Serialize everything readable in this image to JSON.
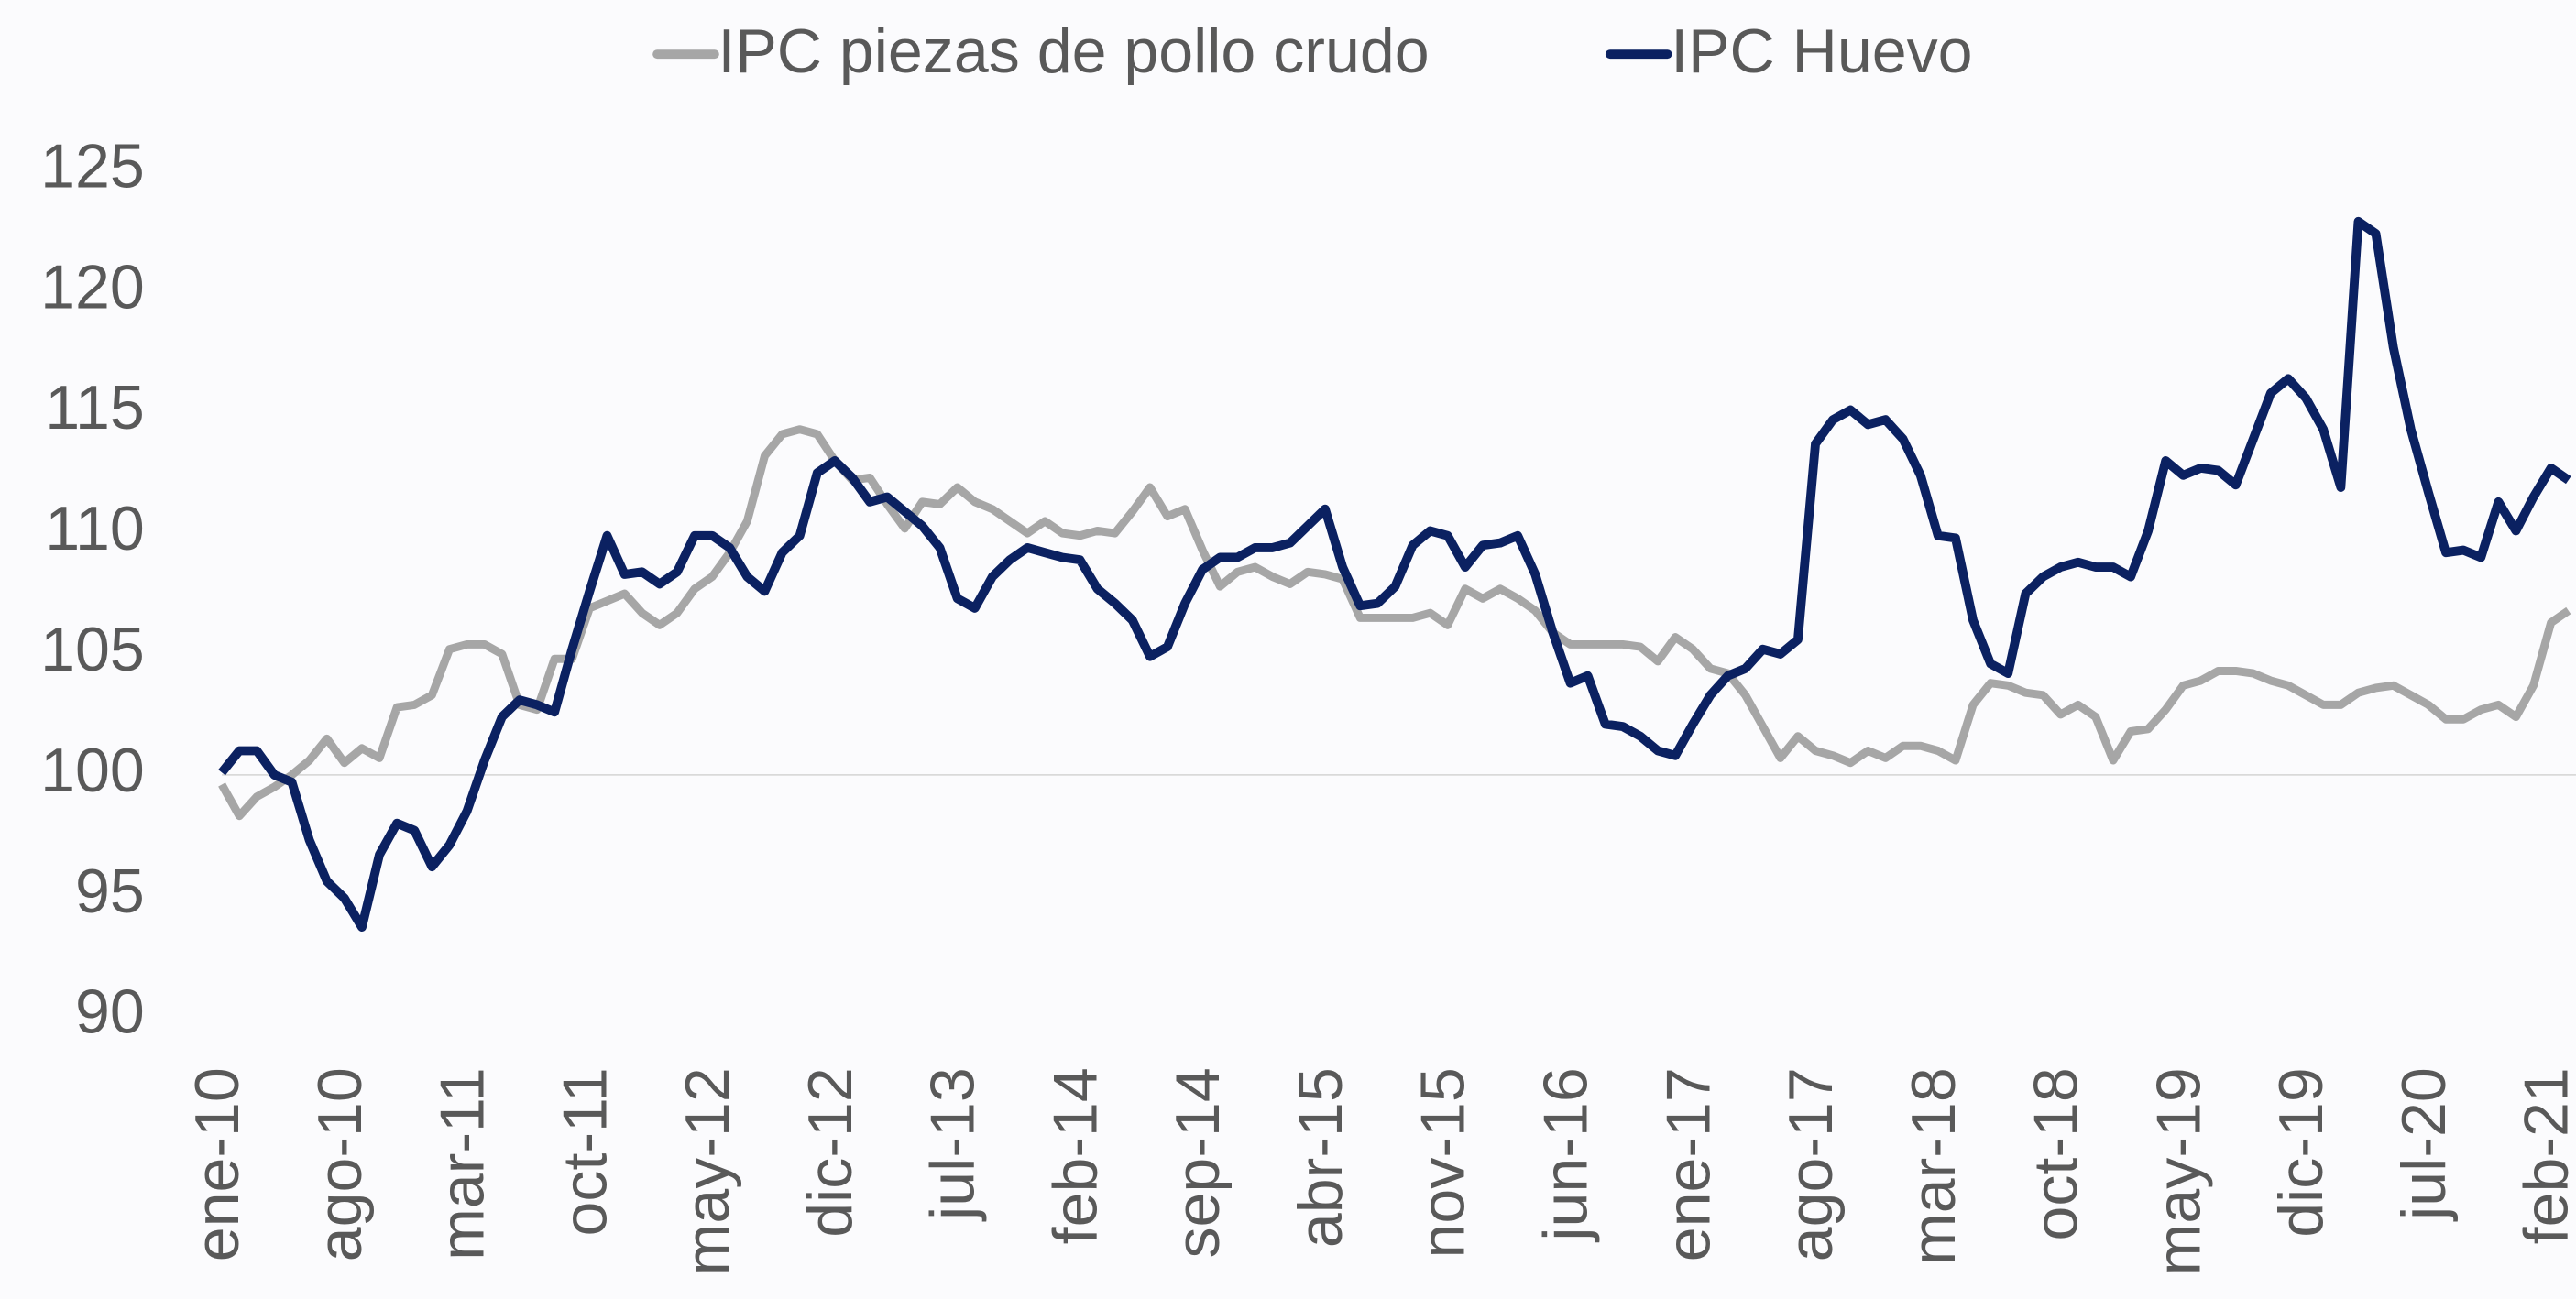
{
  "chart_data": {
    "type": "line",
    "categories": [
      "ene-10",
      null,
      null,
      null,
      null,
      null,
      null,
      "ago-10",
      null,
      null,
      null,
      null,
      null,
      null,
      "mar-11",
      null,
      null,
      null,
      null,
      null,
      null,
      "oct-11",
      null,
      null,
      null,
      null,
      null,
      null,
      "may-12",
      null,
      null,
      null,
      null,
      null,
      null,
      "dic-12",
      null,
      null,
      null,
      null,
      null,
      null,
      "jul-13",
      null,
      null,
      null,
      null,
      null,
      null,
      "feb-14",
      null,
      null,
      null,
      null,
      null,
      null,
      "sep-14",
      null,
      null,
      null,
      null,
      null,
      null,
      "abr-15",
      null,
      null,
      null,
      null,
      null,
      null,
      "nov-15",
      null,
      null,
      null,
      null,
      null,
      null,
      "jun-16",
      null,
      null,
      null,
      null,
      null,
      null,
      "ene-17",
      null,
      null,
      null,
      null,
      null,
      null,
      "ago-17",
      null,
      null,
      null,
      null,
      null,
      null,
      "mar-18",
      null,
      null,
      null,
      null,
      null,
      null,
      "oct-18",
      null,
      null,
      null,
      null,
      null,
      null,
      "may-19",
      null,
      null,
      null,
      null,
      null,
      null,
      "dic-19",
      null,
      null,
      null,
      null,
      null,
      null,
      "jul-20",
      null,
      null,
      null,
      null,
      null,
      null,
      "feb-21",
      null
    ],
    "series": [
      {
        "name": "IPC piezas de pollo crudo",
        "color": "#a6a6a6",
        "values": [
          99.6,
          98.3,
          99.1,
          99.5,
          100,
          100.6,
          101.5,
          100.5,
          101.1,
          100.7,
          102.8,
          102.9,
          103.3,
          105.2,
          105.4,
          105.4,
          105,
          102.9,
          102.7,
          104.8,
          104.8,
          106.9,
          107.2,
          107.5,
          106.7,
          106.2,
          106.7,
          107.7,
          108.2,
          109.2,
          110.5,
          113.2,
          114.1,
          114.3,
          114.1,
          113,
          112.2,
          112.3,
          111.2,
          110.2,
          111.3,
          111.2,
          111.9,
          111.3,
          111,
          110.5,
          110,
          110.5,
          110,
          109.9,
          110.1,
          110,
          110.9,
          111.9,
          110.7,
          111,
          109.3,
          107.8,
          108.4,
          108.6,
          108.2,
          107.9,
          108.4,
          108.3,
          108.1,
          106.5,
          106.5,
          106.5,
          106.5,
          106.7,
          106.2,
          107.7,
          107.3,
          107.7,
          107.3,
          106.8,
          105.9,
          105.4,
          105.4,
          105.4,
          105.4,
          105.3,
          104.7,
          105.7,
          105.2,
          104.4,
          104.2,
          103.3,
          102,
          100.7,
          101.6,
          101,
          100.8,
          100.5,
          101,
          100.7,
          101.2,
          101.2,
          101,
          100.6,
          102.9,
          103.8,
          103.7,
          103.4,
          103.3,
          102.5,
          102.9,
          102.4,
          100.6,
          101.8,
          101.9,
          102.7,
          103.7,
          103.9,
          104.3,
          104.3,
          104.2,
          103.9,
          103.7,
          103.3,
          102.9,
          102.9,
          103.4,
          103.6,
          103.7,
          103.3,
          102.9,
          102.3,
          102.3,
          102.7,
          102.9,
          102.4,
          103.7,
          106.3,
          106.8
        ]
      },
      {
        "name": "IPC Huevo",
        "color": "#0b2161",
        "values": [
          100.1,
          101,
          101,
          100,
          99.7,
          97.3,
          95.6,
          94.9,
          93.7,
          96.7,
          98,
          97.7,
          96.2,
          97.1,
          98.5,
          100.6,
          102.4,
          103.1,
          102.9,
          102.6,
          105.2,
          107.6,
          109.9,
          108.3,
          108.4,
          107.9,
          108.4,
          109.9,
          109.9,
          109.4,
          108.2,
          107.6,
          109.2,
          109.9,
          112.5,
          113,
          112.3,
          111.3,
          111.5,
          110.9,
          110.3,
          109.4,
          107.3,
          106.9,
          108.2,
          108.9,
          109.4,
          109.2,
          109,
          108.9,
          107.7,
          107.1,
          106.4,
          104.9,
          105.3,
          107.1,
          108.5,
          109,
          109,
          109.4,
          109.4,
          109.6,
          110.3,
          111,
          108.6,
          107,
          107.1,
          107.8,
          109.5,
          110.1,
          109.9,
          108.6,
          109.5,
          109.6,
          109.9,
          108.3,
          105.9,
          103.8,
          104.1,
          102.1,
          102,
          101.6,
          101,
          100.8,
          102.1,
          103.3,
          104.1,
          104.4,
          105.2,
          105,
          105.6,
          113.7,
          114.7,
          115.1,
          114.5,
          114.7,
          113.9,
          112.4,
          109.9,
          109.8,
          106.4,
          104.6,
          104.2,
          107.5,
          108.2,
          108.6,
          108.8,
          108.6,
          108.6,
          108.2,
          110.1,
          113,
          112.4,
          112.7,
          112.6,
          112,
          113.9,
          115.8,
          116.4,
          115.6,
          114.3,
          111.9,
          122.9,
          122.4,
          117.7,
          114.3,
          111.7,
          109.2,
          109.3,
          109,
          111.3,
          110.1,
          111.5,
          112.7,
          112.2
        ]
      }
    ],
    "ylim": [
      90,
      125
    ],
    "yticks": [
      90,
      95,
      100,
      105,
      110,
      115,
      120,
      125
    ],
    "x_axis_at": 100,
    "legend": "top"
  }
}
